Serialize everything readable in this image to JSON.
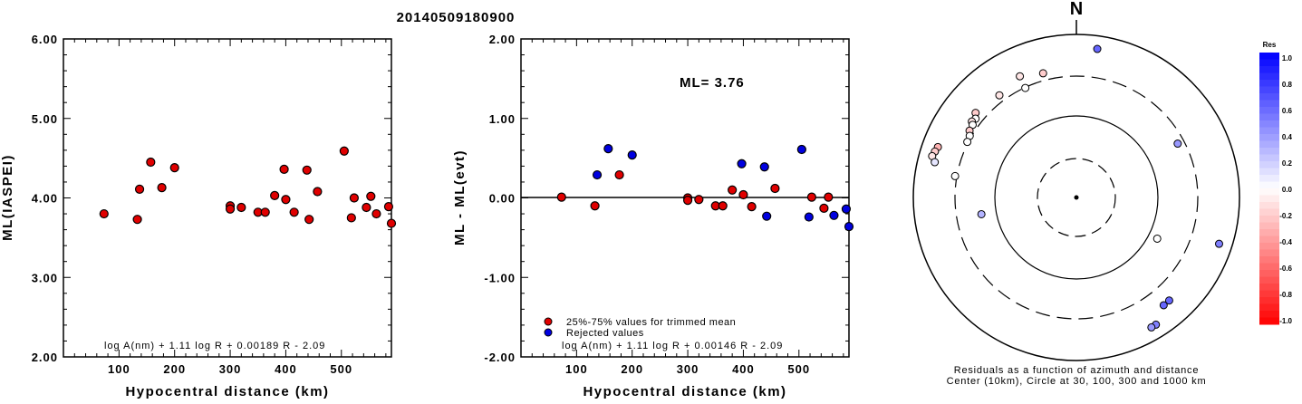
{
  "title": "20140509180900",
  "chart_data": [
    {
      "type": "scatter",
      "xlabel": "Hypocentral distance (km)",
      "ylabel": "ML(IASPEI)",
      "xlim": [
        0,
        590
      ],
      "ylim": [
        2.0,
        6.0
      ],
      "xticks": [
        100,
        200,
        300,
        400,
        500
      ],
      "yticks": [
        "2.00",
        "3.00",
        "4.00",
        "5.00",
        "6.00"
      ],
      "formula": "log A(nm) + 1.11 log R + 0.00189 R - 2.09",
      "series": [
        {
          "color": "#e00000",
          "points": [
            [
              73,
              3.8
            ],
            [
              133,
              3.73
            ],
            [
              137,
              4.11
            ],
            [
              157,
              4.45
            ],
            [
              177,
              4.13
            ],
            [
              200,
              4.38
            ],
            [
              300,
              3.9
            ],
            [
              300,
              3.86
            ],
            [
              320,
              3.88
            ],
            [
              350,
              3.82
            ],
            [
              363,
              3.82
            ],
            [
              380,
              4.03
            ],
            [
              397,
              4.36
            ],
            [
              400,
              3.98
            ],
            [
              415,
              3.82
            ],
            [
              438,
              4.35
            ],
            [
              442,
              3.73
            ],
            [
              457,
              4.08
            ],
            [
              505,
              4.59
            ],
            [
              518,
              3.75
            ],
            [
              523,
              4.0
            ],
            [
              545,
              3.88
            ],
            [
              553,
              4.02
            ],
            [
              563,
              3.8
            ],
            [
              585,
              3.89
            ],
            [
              590,
              3.68
            ]
          ]
        }
      ]
    },
    {
      "type": "scatter",
      "xlabel": "Hypocentral distance (km)",
      "ylabel": "ML - ML(evt)",
      "xlim": [
        0,
        590
      ],
      "ylim": [
        -2.0,
        2.0
      ],
      "xticks": [
        100,
        200,
        300,
        400,
        500
      ],
      "yticks": [
        "-2.00",
        "-1.00",
        "0.00",
        "1.00",
        "2.00"
      ],
      "annotation": "ML= 3.76",
      "formula": "log A(nm) + 1.11 log R + 0.00146 R - 2.09",
      "legend": [
        "25%-75% values for trimmed mean",
        "Rejected values"
      ],
      "series": [
        {
          "name": "25%-75% values for trimmed mean",
          "color": "#e00000",
          "points": [
            [
              73,
              0.01
            ],
            [
              133,
              -0.1
            ],
            [
              177,
              0.29
            ],
            [
              300,
              0.0
            ],
            [
              300,
              -0.03
            ],
            [
              320,
              -0.02
            ],
            [
              350,
              -0.1
            ],
            [
              363,
              -0.1
            ],
            [
              380,
              0.1
            ],
            [
              400,
              0.04
            ],
            [
              415,
              -0.11
            ],
            [
              457,
              0.12
            ],
            [
              523,
              0.01
            ],
            [
              545,
              -0.13
            ],
            [
              553,
              0.01
            ]
          ]
        },
        {
          "name": "Rejected values",
          "color": "#0000e0",
          "points": [
            [
              137,
              0.29
            ],
            [
              157,
              0.62
            ],
            [
              200,
              0.54
            ],
            [
              397,
              0.43
            ],
            [
              438,
              0.39
            ],
            [
              442,
              -0.23
            ],
            [
              505,
              0.61
            ],
            [
              518,
              -0.24
            ],
            [
              563,
              -0.22
            ],
            [
              585,
              -0.14
            ],
            [
              590,
              -0.36
            ]
          ]
        }
      ]
    },
    {
      "type": "scatter",
      "subtype": "polar residual plot",
      "north_label": "N",
      "caption_line1": "Residuals as a function of azimuth and distance",
      "caption_line2": "Center (10km), Circle at 30, 100, 300 and 1000 km",
      "colorbar_title": "Res",
      "colorbar_ticks": [
        "1.0",
        "0.8",
        "0.6",
        "0.4",
        "0.2",
        "0.0",
        "-0.2",
        "-0.4",
        "-0.6",
        "-0.8",
        "-1.0"
      ],
      "stations": [
        {
          "azimuth": 8,
          "distance_km": 1000,
          "res": 0.6
        },
        {
          "azimuth": 345,
          "distance_km": 510,
          "res": -0.2
        },
        {
          "azimuth": 335,
          "distance_km": 600,
          "res": -0.1
        },
        {
          "azimuth": 335,
          "distance_km": 400,
          "res": 0.0
        },
        {
          "azimuth": 323,
          "distance_km": 500,
          "res": -0.1
        },
        {
          "azimuth": 310,
          "distance_km": 560,
          "res": -0.2
        },
        {
          "azimuth": 308,
          "distance_km": 500,
          "res": 0.0
        },
        {
          "azimuth": 306,
          "distance_km": 520,
          "res": -0.1
        },
        {
          "azimuth": 305,
          "distance_km": 480,
          "res": 0.0
        },
        {
          "azimuth": 302,
          "distance_km": 470,
          "res": -0.2
        },
        {
          "azimuth": 300,
          "distance_km": 430,
          "res": 0.0
        },
        {
          "azimuth": 297,
          "distance_km": 420,
          "res": 0.0
        },
        {
          "azimuth": 290,
          "distance_km": 920,
          "res": -0.3
        },
        {
          "azimuth": 288,
          "distance_km": 960,
          "res": -0.2
        },
        {
          "azimuth": 286,
          "distance_km": 1000,
          "res": -0.1
        },
        {
          "azimuth": 284,
          "distance_km": 880,
          "res": 0.1
        },
        {
          "azimuth": 280,
          "distance_km": 430,
          "res": 0.0
        },
        {
          "azimuth": 260,
          "distance_km": 190,
          "res": 0.3
        },
        {
          "azimuth": 62,
          "distance_km": 330,
          "res": 0.4
        },
        {
          "azimuth": 108,
          "distance_km": 1000,
          "res": 0.5
        },
        {
          "azimuth": 117,
          "distance_km": 160,
          "res": 0.0
        },
        {
          "azimuth": 138,
          "distance_km": 700,
          "res": 0.6
        },
        {
          "azimuth": 141,
          "distance_km": 700,
          "res": 0.6
        },
        {
          "azimuth": 148,
          "distance_km": 1000,
          "res": 0.5
        },
        {
          "azimuth": 150,
          "distance_km": 1000,
          "res": 0.4
        }
      ]
    }
  ]
}
